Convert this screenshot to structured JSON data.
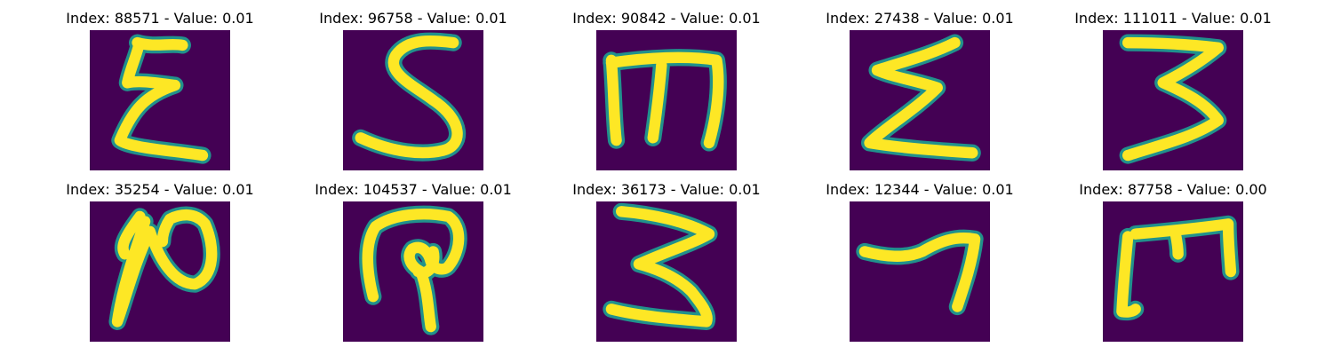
{
  "figure": {
    "background": "#440154",
    "stroke_color": "#fde725",
    "edge_color": "#21918c",
    "panels": [
      {
        "title": "Index: 88571 - Value: 0.01",
        "glyph": "reversed-3-epsilon-icon"
      },
      {
        "title": "Index: 96758 - Value: 0.01",
        "glyph": "letter-s-icon"
      },
      {
        "title": "Index: 90842 - Value: 0.01",
        "glyph": "letter-m-icon"
      },
      {
        "title": "Index: 27438 - Value: 0.01",
        "glyph": "sigma-icon"
      },
      {
        "title": "Index: 111011 - Value: 0.01",
        "glyph": "digit-3-icon"
      },
      {
        "title": "Index: 35254 - Value: 0.01",
        "glyph": "digit-2-loop-icon"
      },
      {
        "title": "Index: 104537 - Value: 0.01",
        "glyph": "loop-glyph-icon"
      },
      {
        "title": "Index: 36173 - Value: 0.01",
        "glyph": "digit-3-variant-icon"
      },
      {
        "title": "Index: 12344 - Value: 0.01",
        "glyph": "digit-7-icon"
      },
      {
        "title": "Index: 87758 - Value: 0.00",
        "glyph": "bracket-m-icon"
      }
    ]
  }
}
